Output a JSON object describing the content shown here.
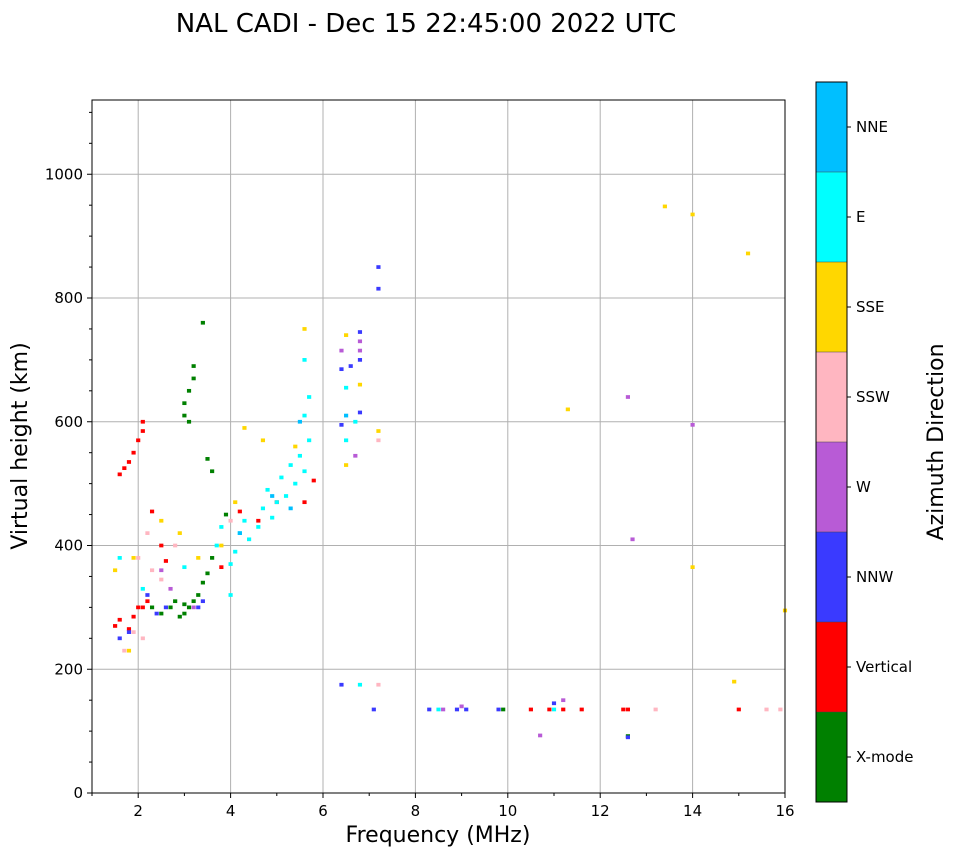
{
  "chart_data": {
    "type": "scatter",
    "title": "NAL CADI - Dec 15 22:45:00 2022 UTC",
    "xlabel": "Frequency (MHz)",
    "ylabel": "Virtual height (km)",
    "xlim": [
      1,
      16
    ],
    "ylim": [
      0,
      1120
    ],
    "xticks": [
      2,
      4,
      6,
      8,
      10,
      12,
      14,
      16
    ],
    "yticks": [
      0,
      200,
      400,
      600,
      800,
      1000
    ],
    "grid": true,
    "colorbar": {
      "label": "Azimuth Direction",
      "categories": [
        "X-mode",
        "Vertical",
        "NNW",
        "W",
        "SSW",
        "SSE",
        "E",
        "NNE"
      ],
      "colors": [
        "#008000",
        "#ff0000",
        "#3a3aff",
        "#b85bd6",
        "#ffb6c1",
        "#ffd700",
        "#00ffff",
        "#00bfff"
      ]
    },
    "series": [
      {
        "name": "X-mode",
        "points": [
          [
            2.3,
            300
          ],
          [
            2.5,
            290
          ],
          [
            2.7,
            300
          ],
          [
            2.8,
            310
          ],
          [
            2.9,
            285
          ],
          [
            3.0,
            305
          ],
          [
            3.0,
            290
          ],
          [
            3.1,
            300
          ],
          [
            3.2,
            310
          ],
          [
            3.3,
            320
          ],
          [
            3.4,
            340
          ],
          [
            3.5,
            355
          ],
          [
            3.6,
            380
          ],
          [
            3.0,
            610
          ],
          [
            3.0,
            630
          ],
          [
            3.1,
            600
          ],
          [
            3.1,
            650
          ],
          [
            3.2,
            670
          ],
          [
            3.2,
            690
          ],
          [
            3.4,
            760
          ],
          [
            3.5,
            540
          ],
          [
            3.6,
            520
          ],
          [
            3.9,
            450
          ],
          [
            9.9,
            135
          ],
          [
            12.6,
            92
          ]
        ]
      },
      {
        "name": "Vertical",
        "points": [
          [
            1.6,
            515
          ],
          [
            1.7,
            525
          ],
          [
            1.8,
            535
          ],
          [
            1.9,
            550
          ],
          [
            2.0,
            570
          ],
          [
            2.1,
            585
          ],
          [
            2.1,
            600
          ],
          [
            1.5,
            270
          ],
          [
            1.6,
            280
          ],
          [
            1.8,
            265
          ],
          [
            1.9,
            285
          ],
          [
            2.0,
            300
          ],
          [
            2.1,
            300
          ],
          [
            2.2,
            310
          ],
          [
            2.3,
            455
          ],
          [
            2.5,
            400
          ],
          [
            2.6,
            375
          ],
          [
            3.8,
            365
          ],
          [
            4.2,
            455
          ],
          [
            4.6,
            440
          ],
          [
            5.0,
            470
          ],
          [
            5.6,
            470
          ],
          [
            5.8,
            505
          ],
          [
            10.5,
            135
          ],
          [
            10.9,
            135
          ],
          [
            11.2,
            135
          ],
          [
            11.6,
            135
          ],
          [
            12.5,
            135
          ],
          [
            12.6,
            135
          ],
          [
            15.0,
            135
          ]
        ]
      },
      {
        "name": "NNW",
        "points": [
          [
            1.6,
            250
          ],
          [
            1.8,
            260
          ],
          [
            2.2,
            320
          ],
          [
            2.4,
            290
          ],
          [
            2.6,
            300
          ],
          [
            3.3,
            300
          ],
          [
            3.4,
            310
          ],
          [
            6.4,
            175
          ],
          [
            7.1,
            135
          ],
          [
            7.2,
            815
          ],
          [
            7.2,
            850
          ],
          [
            6.8,
            745
          ],
          [
            6.8,
            700
          ],
          [
            6.6,
            690
          ],
          [
            6.4,
            685
          ],
          [
            6.8,
            615
          ],
          [
            6.4,
            595
          ],
          [
            8.3,
            135
          ],
          [
            8.9,
            135
          ],
          [
            9.1,
            135
          ],
          [
            9.8,
            135
          ],
          [
            11.0,
            145
          ],
          [
            12.6,
            90
          ]
        ]
      },
      {
        "name": "W",
        "points": [
          [
            2.5,
            360
          ],
          [
            2.7,
            330
          ],
          [
            3.2,
            300
          ],
          [
            6.4,
            715
          ],
          [
            6.8,
            730
          ],
          [
            6.8,
            715
          ],
          [
            6.7,
            545
          ],
          [
            8.6,
            135
          ],
          [
            9.0,
            140
          ],
          [
            10.7,
            93
          ],
          [
            11.2,
            150
          ],
          [
            12.6,
            640
          ],
          [
            12.7,
            410
          ],
          [
            14.0,
            595
          ]
        ]
      },
      {
        "name": "SSW",
        "points": [
          [
            1.7,
            230
          ],
          [
            1.9,
            260
          ],
          [
            2.1,
            250
          ],
          [
            2.0,
            380
          ],
          [
            2.3,
            360
          ],
          [
            2.5,
            345
          ],
          [
            2.2,
            420
          ],
          [
            2.8,
            400
          ],
          [
            4.0,
            440
          ],
          [
            7.2,
            175
          ],
          [
            7.2,
            570
          ],
          [
            13.2,
            135
          ],
          [
            15.6,
            135
          ],
          [
            15.9,
            135
          ]
        ]
      },
      {
        "name": "SSE",
        "points": [
          [
            1.5,
            360
          ],
          [
            1.8,
            230
          ],
          [
            1.9,
            380
          ],
          [
            2.5,
            440
          ],
          [
            2.9,
            420
          ],
          [
            3.3,
            380
          ],
          [
            3.8,
            400
          ],
          [
            4.1,
            470
          ],
          [
            4.3,
            590
          ],
          [
            4.7,
            570
          ],
          [
            5.4,
            560
          ],
          [
            5.6,
            750
          ],
          [
            6.5,
            740
          ],
          [
            6.8,
            660
          ],
          [
            7.2,
            585
          ],
          [
            6.5,
            530
          ],
          [
            11.3,
            620
          ],
          [
            13.4,
            948
          ],
          [
            14.0,
            935
          ],
          [
            15.2,
            872
          ],
          [
            14.0,
            365
          ],
          [
            14.9,
            180
          ],
          [
            16.0,
            295
          ]
        ]
      },
      {
        "name": "E",
        "points": [
          [
            1.6,
            380
          ],
          [
            2.1,
            330
          ],
          [
            3.7,
            400
          ],
          [
            3.8,
            430
          ],
          [
            4.0,
            370
          ],
          [
            4.1,
            390
          ],
          [
            4.2,
            420
          ],
          [
            4.3,
            440
          ],
          [
            4.4,
            410
          ],
          [
            4.6,
            430
          ],
          [
            4.7,
            460
          ],
          [
            4.8,
            490
          ],
          [
            4.9,
            445
          ],
          [
            5.0,
            470
          ],
          [
            5.1,
            510
          ],
          [
            5.2,
            480
          ],
          [
            5.3,
            530
          ],
          [
            5.4,
            500
          ],
          [
            5.5,
            545
          ],
          [
            5.6,
            520
          ],
          [
            5.7,
            570
          ],
          [
            5.6,
            610
          ],
          [
            5.7,
            640
          ],
          [
            5.6,
            700
          ],
          [
            6.5,
            570
          ],
          [
            6.5,
            655
          ],
          [
            6.7,
            600
          ],
          [
            6.8,
            175
          ],
          [
            3.0,
            365
          ],
          [
            4.0,
            320
          ],
          [
            8.5,
            135
          ],
          [
            11.0,
            135
          ]
        ]
      },
      {
        "name": "NNE",
        "points": [
          [
            4.2,
            420
          ],
          [
            4.9,
            480
          ],
          [
            5.3,
            460
          ],
          [
            5.5,
            600
          ],
          [
            6.5,
            610
          ]
        ]
      }
    ]
  }
}
